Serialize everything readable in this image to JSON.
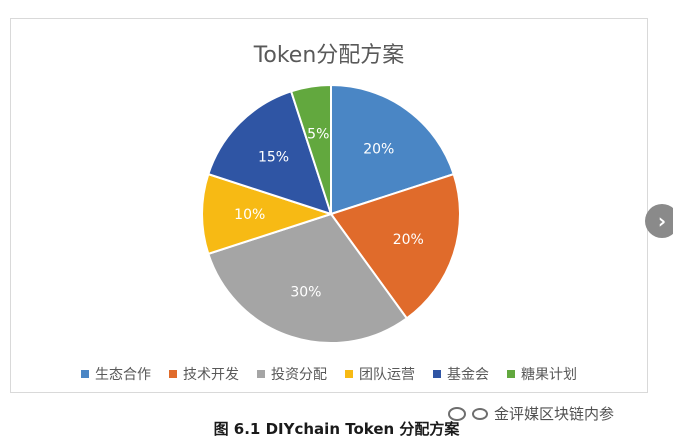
{
  "chart_data": {
    "type": "pie",
    "title": "Token分配方案",
    "categories": [
      "生态合作",
      "技术开发",
      "投资分配",
      "团队运营",
      "基金会",
      "糖果计划"
    ],
    "values": [
      20,
      20,
      30,
      10,
      15,
      5
    ],
    "value_labels": [
      "20%",
      "20%",
      "30%",
      "10%",
      "15%",
      "5%"
    ],
    "colors": [
      "#4a86c5",
      "#e06b2b",
      "#a5a5a5",
      "#f7ba14",
      "#2f55a4",
      "#62a83e"
    ],
    "legend_position": "bottom"
  },
  "caption": "图 6.1 DIYchain Token 分配方案",
  "watermark": "金评媒区块链内参",
  "nav": {
    "next_arrow": "›"
  }
}
